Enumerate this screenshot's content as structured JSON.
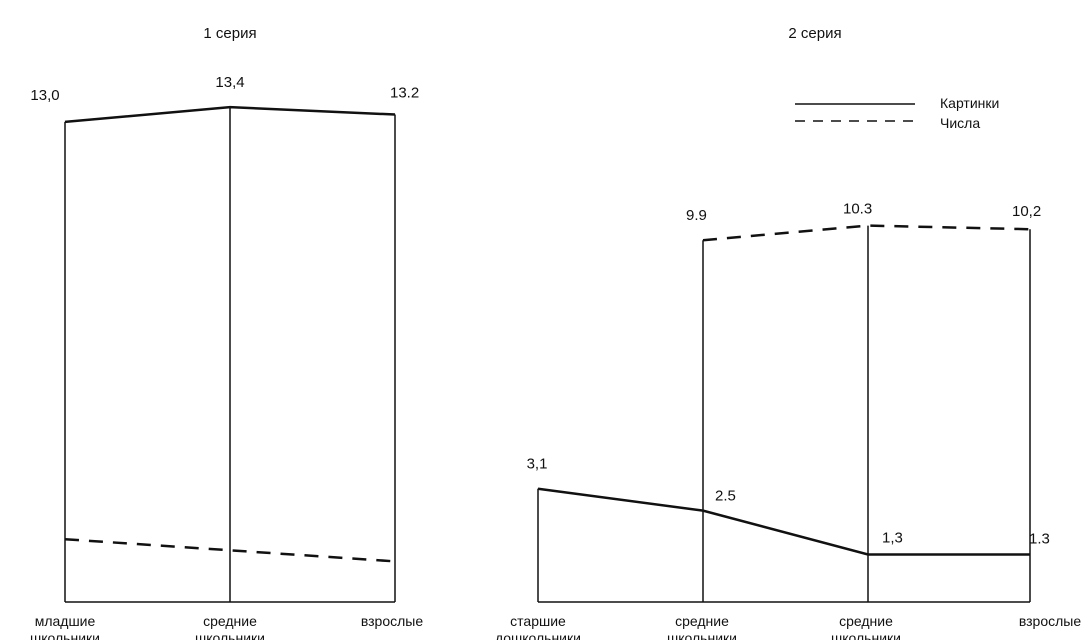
{
  "chart_data": [
    {
      "type": "line",
      "title": "1 серия",
      "categories": [
        [
          "младшие",
          "школьники"
        ],
        [
          "средние",
          "школьники"
        ],
        [
          "взрослые"
        ]
      ],
      "series": [
        {
          "key": "pictures",
          "style": "solid",
          "values": [
            13.0,
            13.4,
            13.2
          ],
          "labels": [
            "13,0",
            "13,4",
            "13.2"
          ]
        },
        {
          "key": "numbers",
          "style": "dashed",
          "values": [
            1.7,
            1.4,
            1.1
          ],
          "labels": []
        }
      ],
      "ylim": [
        0,
        14
      ]
    },
    {
      "type": "line",
      "title": "2 серия",
      "categories": [
        [
          "старшие",
          "дошкольники"
        ],
        [
          "средние",
          "школьники"
        ],
        [
          "средние",
          "школьники"
        ],
        [
          "взрослые"
        ]
      ],
      "series": [
        {
          "key": "pictures",
          "name": "Картинки",
          "style": "solid",
          "values": [
            3.1,
            2.5,
            1.3,
            1.3
          ],
          "labels": [
            "3,1",
            "2.5",
            "1,3",
            "1.3"
          ]
        },
        {
          "key": "numbers",
          "name": "Числа",
          "style": "dashed",
          "values": [
            null,
            9.9,
            10.3,
            10.2
          ],
          "labels": [
            "",
            "9.9",
            "10.3",
            "10,2"
          ]
        }
      ],
      "ylim": [
        0,
        11
      ]
    }
  ],
  "legend": {
    "placement": "top-right",
    "items": [
      "Картинки",
      "Числа"
    ]
  },
  "colors": {
    "line": "#111111",
    "background": "#ffffff"
  }
}
